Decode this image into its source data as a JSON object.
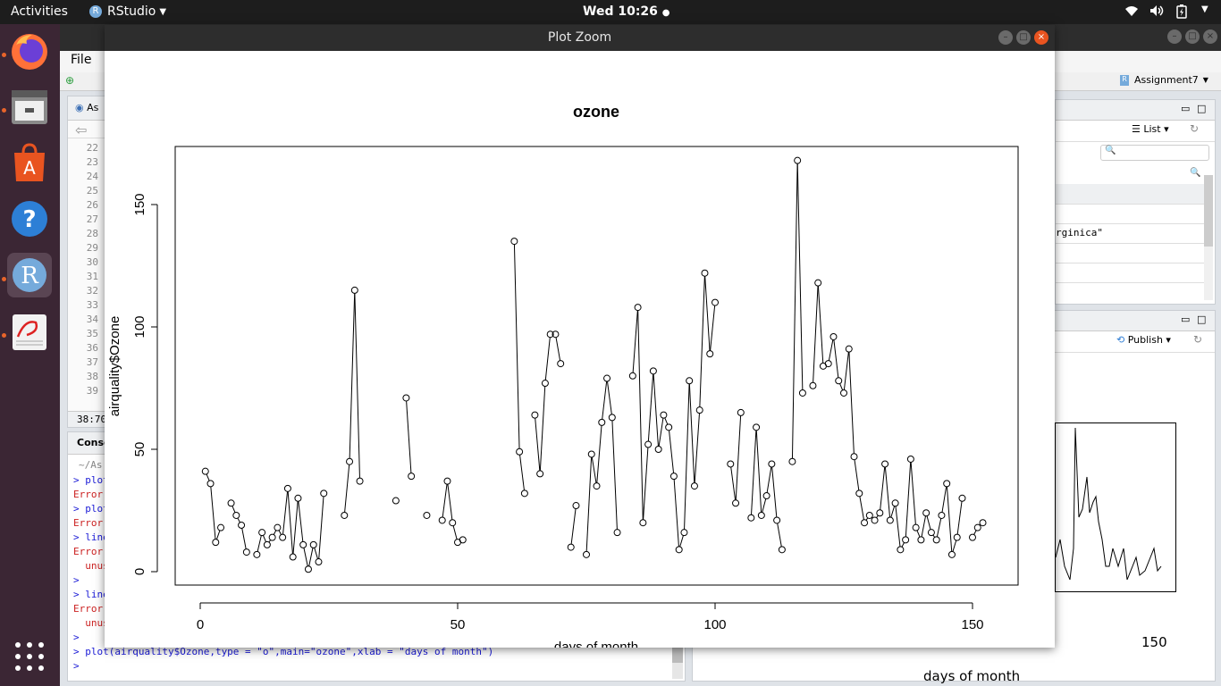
{
  "topbar": {
    "activities": "Activities",
    "app_menu": "RStudio",
    "clock": "Wed 10:26"
  },
  "rstudio": {
    "menu_file": "File",
    "project": "Assignment7",
    "editor_tab": "As",
    "line_numbers": [
      "22",
      "23",
      "24",
      "25",
      "26",
      "27",
      "28",
      "29",
      "30",
      "31",
      "32",
      "33",
      "34",
      "35",
      "36",
      "37",
      "38",
      "39"
    ],
    "cursor_pos": "38:70",
    "console_tab": "Conso",
    "console_path": "~/As",
    "console_lines": [
      {
        "text": "> plot",
        "color": "#1a1ad6"
      },
      {
        "text": "Error",
        "color": "#c22"
      },
      {
        "text": "> plot",
        "color": "#1a1ad6"
      },
      {
        "text": "Error",
        "color": "#c22"
      },
      {
        "text": "> line",
        "color": "#1a1ad6"
      },
      {
        "text": "Error",
        "color": "#c22"
      },
      {
        "text": "  unus",
        "color": "#c22"
      },
      {
        "text": ">",
        "color": "#1a1ad6"
      },
      {
        "text": "> line",
        "color": "#1a1ad6"
      },
      {
        "text": "Error",
        "color": "#c22"
      },
      {
        "text": "  unus",
        "color": "#c22"
      },
      {
        "text": ">",
        "color": "#1a1ad6"
      },
      {
        "text": "> plot(airquality$Ozone,type = \"o\",main=\"ozone\",xlab = \"days of month\")",
        "color": "#1a1ad6"
      },
      {
        "text": "> ",
        "color": "#1a1ad6"
      }
    ],
    "env_list_label": "List",
    "env_text": "rginica\"",
    "publish_label": "Publish",
    "bg_tick_label": "150",
    "bg_xlabel": "days of month"
  },
  "zoom_window": {
    "title": "Plot Zoom"
  },
  "chart_data": {
    "type": "line",
    "title": "ozone",
    "xlabel": "days of month",
    "ylabel": "airquality$Ozone",
    "xlim": [
      0,
      153
    ],
    "ylim": [
      0,
      168
    ],
    "xticks": [
      0,
      50,
      100,
      150
    ],
    "yticks": [
      0,
      50,
      100,
      150
    ],
    "line_style": "o",
    "values": [
      41,
      36,
      12,
      18,
      null,
      28,
      23,
      19,
      8,
      null,
      7,
      16,
      11,
      14,
      18,
      14,
      34,
      6,
      30,
      11,
      1,
      11,
      4,
      32,
      null,
      null,
      null,
      23,
      45,
      115,
      37,
      null,
      null,
      null,
      null,
      null,
      null,
      29,
      null,
      71,
      39,
      null,
      null,
      23,
      null,
      null,
      21,
      37,
      20,
      12,
      13,
      null,
      null,
      null,
      null,
      null,
      null,
      null,
      null,
      null,
      135,
      49,
      32,
      null,
      64,
      40,
      77,
      97,
      97,
      85,
      null,
      10,
      27,
      null,
      7,
      48,
      35,
      61,
      79,
      63,
      16,
      null,
      null,
      80,
      108,
      20,
      52,
      82,
      50,
      64,
      59,
      39,
      9,
      16,
      78,
      35,
      66,
      122,
      89,
      110,
      null,
      null,
      44,
      28,
      65,
      null,
      22,
      59,
      23,
      31,
      44,
      21,
      9,
      null,
      45,
      168,
      73,
      null,
      76,
      118,
      84,
      85,
      96,
      78,
      73,
      91,
      47,
      32,
      20,
      23,
      21,
      24,
      44,
      21,
      28,
      9,
      13,
      46,
      18,
      13,
      24,
      16,
      13,
      23,
      36,
      7,
      14,
      30,
      null,
      14,
      18,
      20
    ]
  }
}
